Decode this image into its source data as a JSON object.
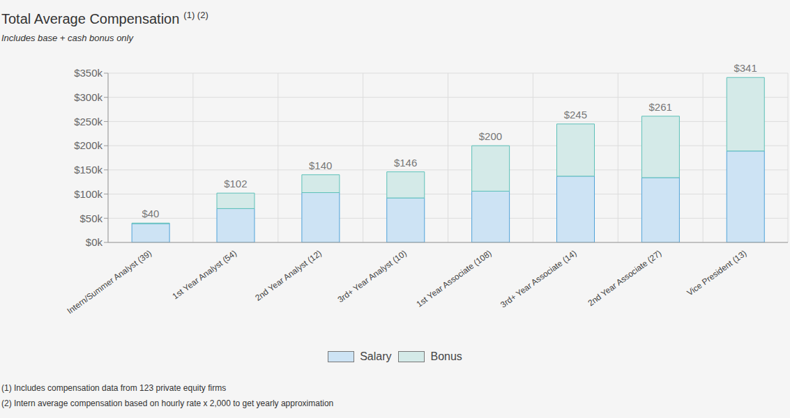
{
  "title": "Total Average Compensation",
  "title_superscript": "(1) (2)",
  "subtitle": "Includes base + cash bonus only",
  "footnotes": [
    "(1) Includes compensation data from 123 private equity firms",
    "(2) Intern average compensation based on hourly rate x 2,000 to get yearly approximation"
  ],
  "chart_data": {
    "type": "bar",
    "stacked": true,
    "grid": true,
    "legend": "bottom",
    "categories": [
      "Intern/Summer Analyst (39)",
      "1st Year Analyst (54)",
      "2nd Year Analyst (12)",
      "3rd+ Year Analyst (10)",
      "1st Year Associate (108)",
      "3rd+ Year Associate (14)",
      "2nd Year Associate (27)",
      "Vice President (13)"
    ],
    "series": [
      {
        "name": "Salary",
        "color": "#cde3f4",
        "values": [
          39,
          70,
          103,
          92,
          106,
          137,
          134,
          189
        ]
      },
      {
        "name": "Bonus",
        "color": "#d4eae8",
        "values": [
          1,
          32,
          37,
          54,
          94,
          108,
          127,
          152
        ]
      }
    ],
    "totals": [
      40,
      102,
      140,
      146,
      200,
      245,
      261,
      341
    ],
    "total_labels": [
      "$40",
      "$102",
      "$140",
      "$146",
      "$200",
      "$245",
      "$261",
      "$341"
    ],
    "ylim": [
      0,
      350
    ],
    "yticks": [
      {
        "value": 0,
        "label": "$0k"
      },
      {
        "value": 50,
        "label": "$50k"
      },
      {
        "value": 100,
        "label": "$100k"
      },
      {
        "value": 150,
        "label": "$150k"
      },
      {
        "value": 200,
        "label": "$200k"
      },
      {
        "value": 250,
        "label": "$250k"
      },
      {
        "value": 300,
        "label": "$300k"
      },
      {
        "value": 350,
        "label": "$350k"
      }
    ]
  }
}
